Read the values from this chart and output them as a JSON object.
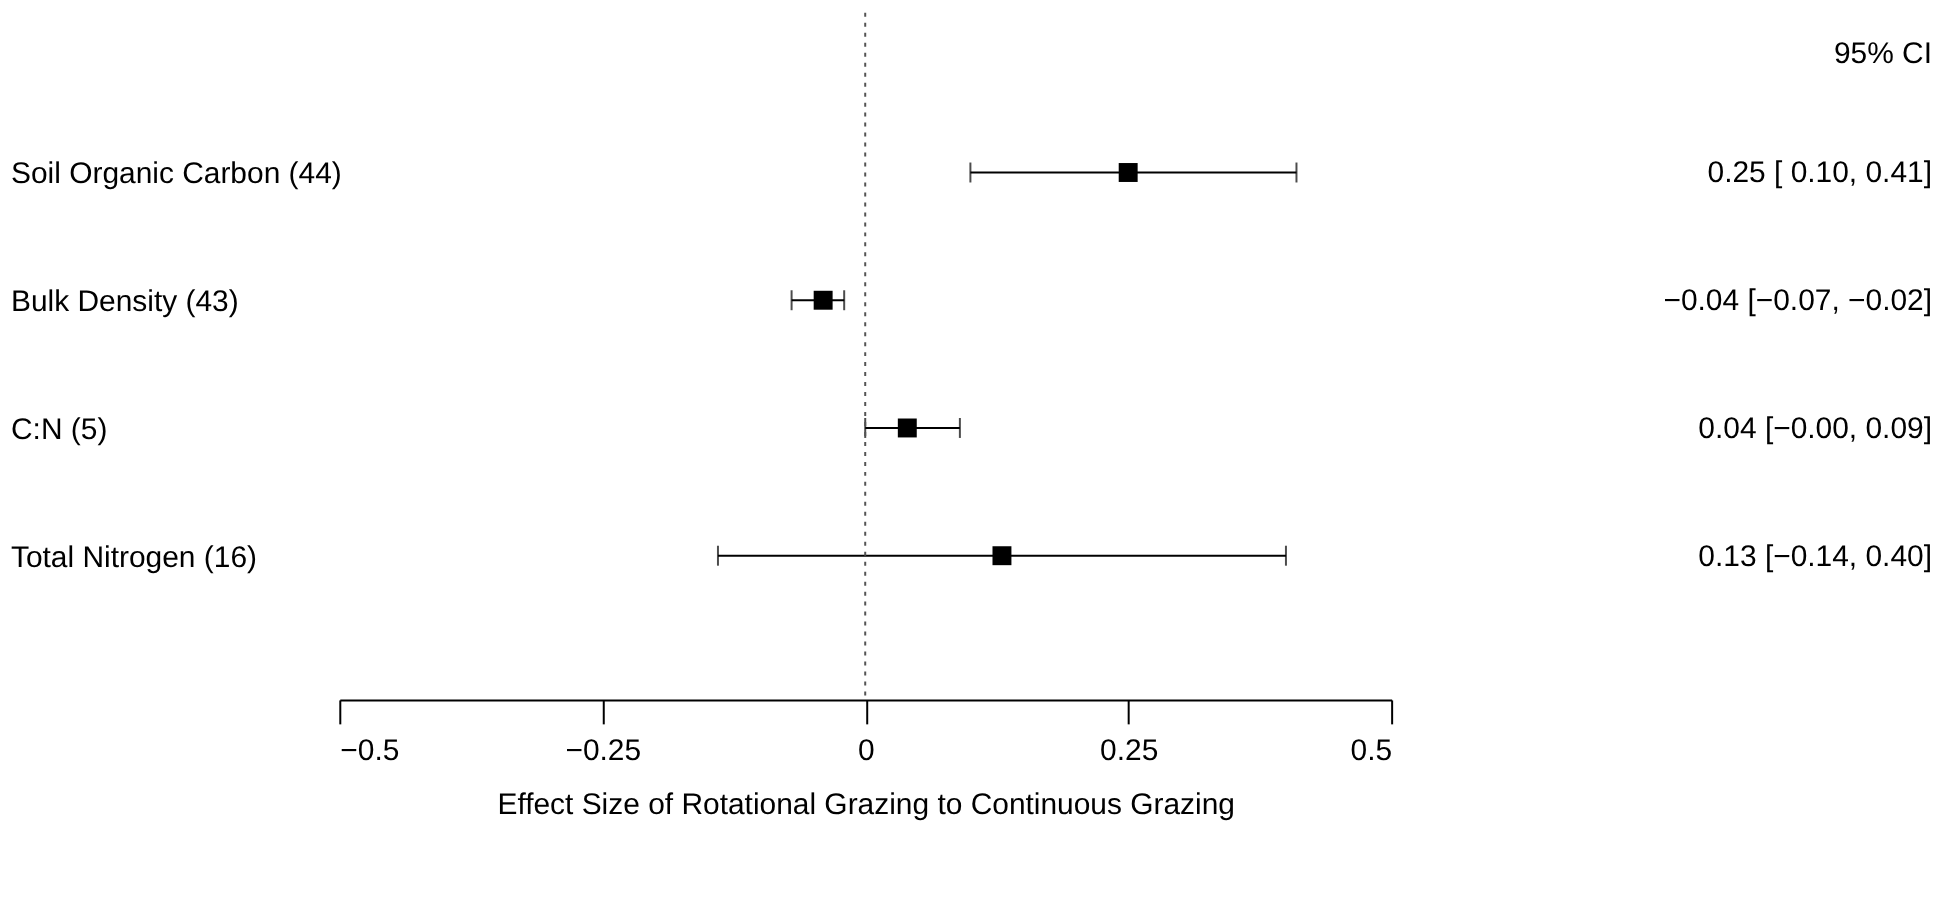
{
  "chart_data": {
    "type": "scatter",
    "orientation": "horizontal",
    "categories": [
      "Soil Organic Carbon (44)",
      "Bulk Density (43)",
      "C:N (5)",
      "Total Nitrogen (16)"
    ],
    "values": [
      0.25,
      -0.04,
      0.04,
      0.13
    ],
    "errors": [
      [
        0.1,
        0.41
      ],
      [
        -0.07,
        -0.02
      ],
      [
        -0.0,
        0.09
      ],
      [
        -0.14,
        0.4
      ]
    ],
    "value_labels": [
      "0.25 [ 0.10,  0.41]",
      "−0.04 [−0.07, −0.02]",
      "0.04 [−0.00,  0.09]",
      "0.13 [−0.14,  0.40]"
    ],
    "xlim": [
      -0.5,
      0.5
    ],
    "xticks": [
      {
        "value": -0.5,
        "label": "−0.5"
      },
      {
        "value": -0.25,
        "label": "−0.25"
      },
      0,
      0.25,
      0.5
    ],
    "xlabel": "Effect Size of Rotational Grazing to Continuous Grazing",
    "annotations": [
      "95% CI"
    ],
    "ref_lines": [
      {
        "axis": "x",
        "value": 0,
        "line_style": "dotted",
        "color": "#555555"
      }
    ],
    "color": "#000000",
    "marker": "square",
    "grid": false
  }
}
